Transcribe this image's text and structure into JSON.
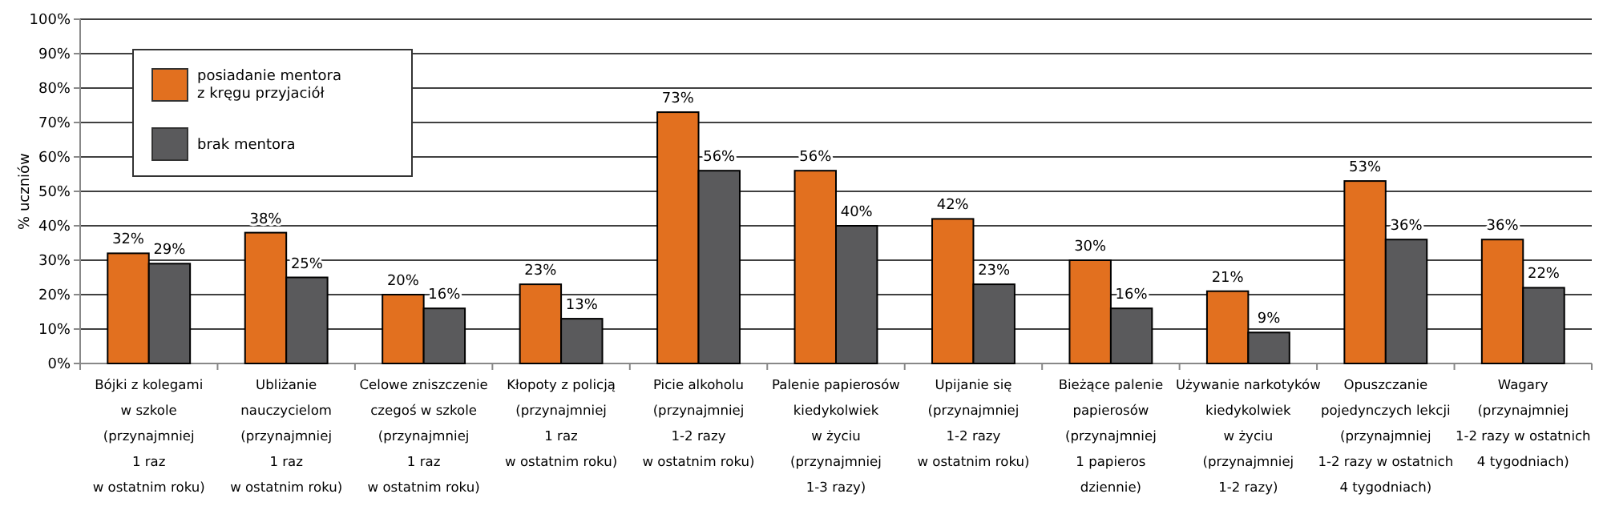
{
  "chart_data": {
    "type": "bar",
    "ylabel": "% uczniów",
    "categories": [
      "Bójki z kolegami\nw szkole\n(przynajmniej\n1 raz\nw ostatnim roku)",
      "Ubliżanie\nnauczycielom\n(przynajmniej\n1 raz\nw ostatnim roku)",
      "Celowe zniszczenie\nczegoś w szkole\n(przynajmniej\n1 raz\nw ostatnim roku)",
      "Kłopoty z policją\n(przynajmniej\n1 raz\nw ostatnim roku)",
      "Picie alkoholu\n(przynajmniej\n1-2 razy\nw ostatnim roku)",
      "Palenie papierosów\nkiedykolwiek\nw życiu\n(przynajmniej\n1-3 razy)",
      "Upijanie się\n(przynajmniej\n1-2 razy\nw ostatnim roku)",
      "Bieżące palenie\npapierosów\n(przynajmniej\n1 papieros\ndziennie)",
      "Używanie narkotyków\nkiedykolwiek\nw życiu\n(przynajmniej\n1-2 razy)",
      "Opuszczanie\npojedynczych lekcji\n(przynajmniej\n1-2 razy w ostatnich\n4 tygodniach)",
      "Wagary\n(przynajmniej\n1-2 razy w ostatnich\n4 tygodniach)"
    ],
    "series": [
      {
        "name": "posiadanie mentora\nz kręgu przyjaciół",
        "color": "#e2701f",
        "values": [
          32,
          38,
          20,
          23,
          73,
          56,
          42,
          30,
          21,
          53,
          36
        ],
        "value_labels": [
          "32%",
          "38%",
          "20%",
          "23%",
          "73%",
          "56%",
          "42%",
          "30%",
          "21%",
          "53%",
          "36%"
        ]
      },
      {
        "name": "brak mentora",
        "color": "#5a5a5c",
        "values": [
          29,
          25,
          16,
          13,
          56,
          40,
          23,
          16,
          9,
          36,
          22
        ],
        "value_labels": [
          "29%",
          "25%",
          "16%",
          "13%",
          "56%",
          "40%",
          "23%",
          "16%",
          "9%",
          "36%",
          "22%"
        ]
      }
    ],
    "ylim": [
      0,
      100
    ],
    "yticks": [
      {
        "value": 0,
        "label": "0%"
      },
      {
        "value": 10,
        "label": "10%"
      },
      {
        "value": 20,
        "label": "20%"
      },
      {
        "value": 30,
        "label": "30%"
      },
      {
        "value": 40,
        "label": "40%"
      },
      {
        "value": 50,
        "label": "50%"
      },
      {
        "value": 60,
        "label": "60%"
      },
      {
        "value": 70,
        "label": "70%"
      },
      {
        "value": 80,
        "label": "80%"
      },
      {
        "value": 90,
        "label": "90%"
      },
      {
        "value": 100,
        "label": "100%"
      }
    ],
    "grid": "y",
    "legend": "top left"
  }
}
